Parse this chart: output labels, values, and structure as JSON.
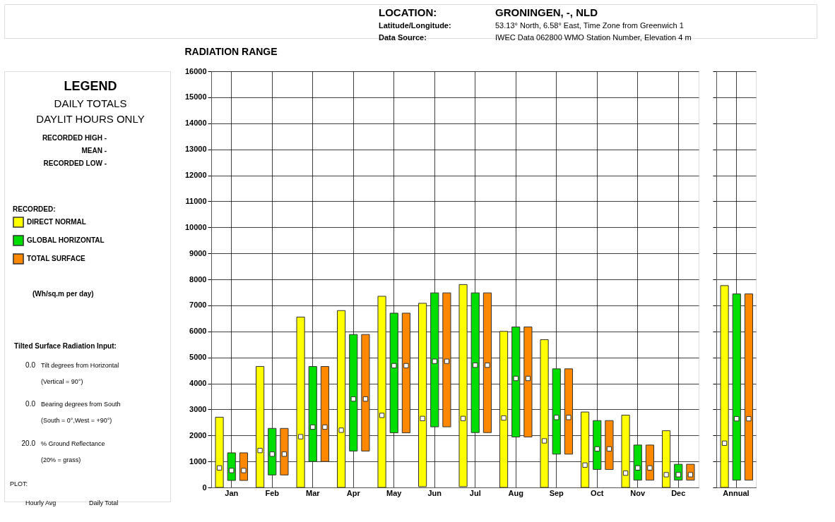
{
  "chart_data": [
    {
      "type": "bar",
      "title": "RADIATION RANGE",
      "legend_title": "RECORDED:",
      "legend": "left",
      "grid": true,
      "marker": "square",
      "categories": [
        "Jan",
        "Feb",
        "Mar",
        "Apr",
        "May",
        "Jun",
        "Jul",
        "Aug",
        "Sep",
        "Oct",
        "Nov",
        "Dec"
      ],
      "ylim": [
        0,
        16000
      ],
      "yticks": [
        0,
        1000,
        2000,
        3000,
        4000,
        5000,
        6000,
        7000,
        8000,
        9000,
        10000,
        11000,
        12000,
        13000,
        14000,
        15000,
        16000
      ],
      "series": [
        {
          "name": "DIRECT NORMAL",
          "color": "#ffff00",
          "base": [
            0,
            0,
            0,
            0,
            0,
            30,
            30,
            0,
            0,
            0,
            0,
            0
          ],
          "values": [
            2700,
            4650,
            6550,
            6800,
            7350,
            7050,
            7770,
            6000,
            5680,
            2900,
            2780,
            2180
          ]
        },
        {
          "name": "GLOBAL HORIZONTAL",
          "color": "#00dd00",
          "base": [
            270,
            480,
            1000,
            1400,
            2100,
            2330,
            2110,
            1940,
            1280,
            690,
            280,
            280
          ],
          "values": [
            1060,
            1790,
            3650,
            4480,
            4600,
            5150,
            5370,
            4230,
            3280,
            1880,
            1350,
            610
          ]
        },
        {
          "name": "TOTAL SURFACE",
          "color": "#ff8800",
          "base": [
            270,
            480,
            1000,
            1400,
            2100,
            2330,
            2110,
            1940,
            1280,
            690,
            280,
            280
          ],
          "values": [
            1060,
            1790,
            3650,
            4480,
            4600,
            5150,
            5370,
            4230,
            3280,
            1880,
            1350,
            610
          ]
        },
        {
          "type": "scatter",
          "color": "#ffffff",
          "values": [
            750,
            1420,
            1950,
            2200,
            2770,
            2650,
            2650,
            2670,
            1790,
            860,
            550,
            490
          ]
        },
        {
          "type": "scatter",
          "color": "#ffffff",
          "values": [
            650,
            1280,
            2320,
            3400,
            4680,
            4850,
            4700,
            4190,
            2690,
            1480,
            750,
            490
          ]
        },
        {
          "type": "scatter",
          "color": "#ffffff",
          "values": [
            650,
            1280,
            2320,
            3400,
            4680,
            4850,
            4700,
            4190,
            2690,
            1480,
            750,
            490
          ]
        }
      ],
      "annotations": [
        "LOCATION:",
        "GRONINGEN, -, NLD",
        "Latitude/Longitude:",
        "53.13° North, 6.58° East, Time Zone from Greenwich 1",
        "Data Source:",
        "IWEC Data    062800 WMO Station Number, Elevation 4 m",
        "LEGEND",
        "DAILY TOTALS",
        "DAYLIT HOURS ONLY",
        "RECORDED HIGH -",
        "MEAN -",
        "RECORDED LOW -",
        "(Wh/sq.m per day)",
        "Tilted Surface Radiation Input:",
        "0.0",
        "Tilt degrees from Horizontal",
        "(Vertical = 90°)",
        "0.0",
        "Bearing degrees from South",
        "(South = 0°,West = +90°)",
        "20.0",
        "% Ground Reflectance",
        "(20% = grass)",
        "PLOT:",
        "Hourly Avg",
        "Daily Total"
      ]
    },
    {
      "type": "bar",
      "grid": true,
      "marker": "square",
      "tick_labels": "x",
      "categories": [
        "Annual"
      ],
      "ylim": [
        0,
        16000
      ],
      "yticks": [
        0,
        1000,
        2000,
        3000,
        4000,
        5000,
        6000,
        7000,
        8000,
        9000,
        10000,
        11000,
        12000,
        13000,
        14000,
        15000,
        16000
      ],
      "series": [
        {
          "name": "DIRECT NORMAL",
          "color": "#ffff00",
          "base": [
            0
          ],
          "values": [
            7760
          ]
        },
        {
          "name": "GLOBAL HORIZONTAL",
          "color": "#00dd00",
          "base": [
            280
          ],
          "values": [
            7160
          ]
        },
        {
          "name": "TOTAL SURFACE",
          "color": "#ff8800",
          "base": [
            280
          ],
          "values": [
            7160
          ]
        },
        {
          "type": "scatter",
          "color": "#ffffff",
          "values": [
            1700
          ]
        },
        {
          "type": "scatter",
          "color": "#ffffff",
          "values": [
            2640
          ]
        },
        {
          "type": "scatter",
          "color": "#ffffff",
          "values": [
            2640
          ]
        }
      ]
    }
  ]
}
